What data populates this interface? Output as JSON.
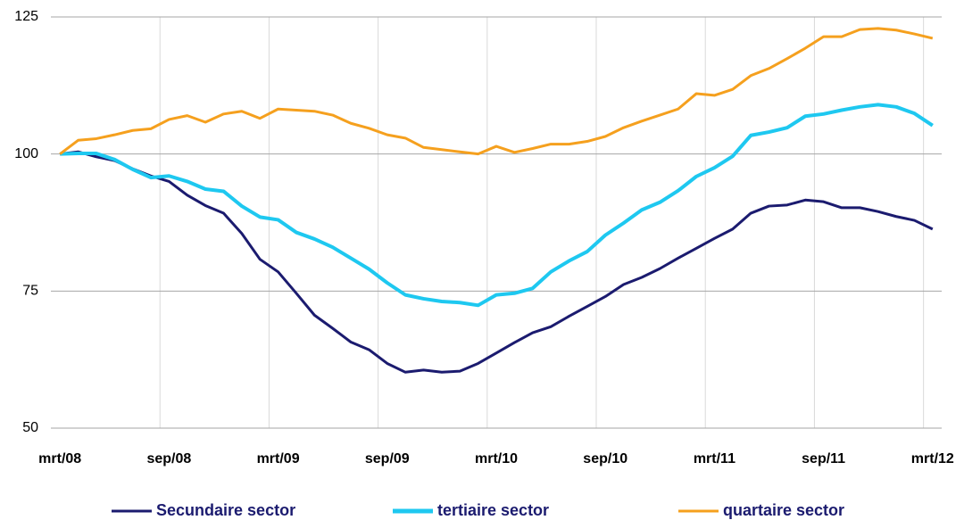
{
  "chart_data": {
    "type": "line",
    "categories": [
      "mrt/08",
      null,
      null,
      null,
      null,
      null,
      "sep/08",
      null,
      null,
      null,
      null,
      null,
      "mrt/09",
      null,
      null,
      null,
      null,
      null,
      "sep/09",
      null,
      null,
      null,
      null,
      null,
      "mrt/10",
      null,
      null,
      null,
      null,
      null,
      "sep/10",
      null,
      null,
      null,
      null,
      null,
      "mrt/11",
      null,
      null,
      null,
      null,
      null,
      "sep/11",
      null,
      null,
      null,
      null,
      null,
      "mrt/12"
    ],
    "series": [
      {
        "name": "Secundaire sector",
        "color": "#1b1b6f",
        "values": [
          100,
          100.4,
          99.5,
          98.8,
          97.3,
          96,
          95,
          92.5,
          90.6,
          89.2,
          85.5,
          80.8,
          78.5,
          74.6,
          70.6,
          68.2,
          65.7,
          64.3,
          61.8,
          60.2,
          60.6,
          60.2,
          60.4,
          61.8,
          63.7,
          65.6,
          67.4,
          68.5,
          70.4,
          72.2,
          74,
          76.2,
          77.5,
          79.1,
          81,
          82.8,
          84.6,
          86.3,
          89.2,
          90.5,
          90.7,
          91.6,
          91.3,
          90.2,
          90.2,
          89.5,
          88.6,
          87.9,
          86.3
        ]
      },
      {
        "name": "tertiaire sector",
        "color": "#1ec8f0",
        "values": [
          100,
          100.1,
          100.1,
          99,
          97.2,
          95.7,
          96,
          95,
          93.6,
          93.2,
          90.5,
          88.5,
          88,
          85.7,
          84.5,
          83,
          81,
          79,
          76.5,
          74.3,
          73.6,
          73.1,
          72.9,
          72.4,
          74.3,
          74.6,
          75.5,
          78.5,
          80.5,
          82.2,
          85.2,
          87.4,
          89.8,
          91.2,
          93.3,
          95.9,
          97.5,
          99.6,
          103.4,
          104,
          104.8,
          106.9,
          107.3,
          108,
          108.6,
          109,
          108.6,
          107.4,
          105.2
        ]
      },
      {
        "name": "quartaire sector",
        "color": "#f5a01e",
        "values": [
          100,
          102.5,
          102.8,
          103.5,
          104.3,
          104.6,
          106.3,
          107,
          105.8,
          107.3,
          107.8,
          106.5,
          108.2,
          108,
          107.8,
          107.1,
          105.6,
          104.7,
          103.5,
          102.9,
          101.2,
          100.8,
          100.4,
          100,
          101.4,
          100.3,
          101,
          101.8,
          101.8,
          102.3,
          103.2,
          104.8,
          106,
          107.1,
          108.2,
          111,
          110.7,
          111.8,
          114.3,
          115.6,
          117.4,
          119.3,
          121.4,
          121.4,
          122.7,
          122.9,
          122.6,
          121.9,
          121.1
        ]
      }
    ],
    "ylim": [
      50,
      125
    ],
    "yticks": [
      50,
      75,
      100,
      125
    ],
    "grid": true,
    "legend": "bottom"
  }
}
